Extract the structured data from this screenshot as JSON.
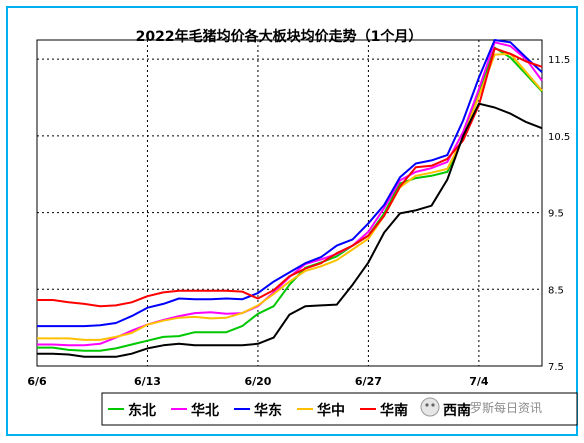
{
  "chart_data": {
    "type": "line",
    "title": "2022年毛猪均价各大板块均价走势（1个月）",
    "xlabel": "",
    "ylabel": "",
    "x_tick_labels": [
      "6/6",
      "6/13",
      "6/20",
      "6/27",
      "7/4"
    ],
    "x_tick_index": [
      0,
      7,
      14,
      21,
      28
    ],
    "ylim": [
      7.5,
      11.75
    ],
    "y_ticks": [
      7.5,
      8.5,
      9.5,
      10.5,
      11.5
    ],
    "y_tick_labels": [
      "7.5",
      "8.5",
      "9.5",
      "10.5",
      "11.5"
    ],
    "y_axis_side": "right",
    "grid": true,
    "legend_position": "bottom",
    "colors": {
      "background": "#ffffff",
      "frame": "#00b0f0",
      "grid": "#000000"
    },
    "series": [
      {
        "name": "东北",
        "color": "#00c800",
        "values": [
          7.74,
          7.74,
          7.71,
          7.7,
          7.7,
          7.73,
          7.78,
          7.83,
          7.88,
          7.89,
          7.94,
          7.94,
          7.94,
          8.02,
          8.18,
          8.28,
          8.56,
          8.78,
          8.85,
          8.93,
          9.07,
          9.2,
          9.49,
          9.88,
          9.95,
          9.98,
          10.03,
          10.48,
          11.06,
          11.65,
          11.52,
          11.3,
          11.08
        ]
      },
      {
        "name": "华北",
        "color": "#ff00ff",
        "values": [
          7.78,
          7.78,
          7.77,
          7.77,
          7.79,
          7.87,
          7.96,
          8.04,
          8.1,
          8.15,
          8.19,
          8.2,
          8.18,
          8.19,
          8.28,
          8.46,
          8.66,
          8.83,
          8.89,
          8.96,
          9.07,
          9.25,
          9.56,
          9.92,
          10.03,
          10.08,
          10.16,
          10.55,
          11.11,
          11.72,
          11.67,
          11.5,
          11.22
        ]
      },
      {
        "name": "华东",
        "color": "#0000ff",
        "values": [
          8.02,
          8.02,
          8.02,
          8.02,
          8.03,
          8.06,
          8.15,
          8.26,
          8.31,
          8.38,
          8.37,
          8.37,
          8.38,
          8.37,
          8.45,
          8.6,
          8.72,
          8.84,
          8.92,
          9.07,
          9.15,
          9.36,
          9.6,
          9.96,
          10.14,
          10.18,
          10.25,
          10.7,
          11.26,
          11.75,
          11.72,
          11.52,
          11.33
        ]
      },
      {
        "name": "华中",
        "color": "#ffc000",
        "values": [
          7.86,
          7.86,
          7.86,
          7.84,
          7.84,
          7.88,
          7.93,
          8.04,
          8.09,
          8.13,
          8.14,
          8.12,
          8.13,
          8.19,
          8.29,
          8.44,
          8.6,
          8.74,
          8.8,
          8.88,
          9.02,
          9.16,
          9.46,
          9.83,
          9.98,
          10.02,
          10.07,
          10.48,
          11.02,
          11.56,
          11.57,
          11.33,
          11.09
        ]
      },
      {
        "name": "华南",
        "color": "#ff0000",
        "values": [
          8.36,
          8.36,
          8.33,
          8.31,
          8.28,
          8.29,
          8.33,
          8.41,
          8.46,
          8.48,
          8.48,
          8.48,
          8.48,
          8.47,
          8.38,
          8.49,
          8.67,
          8.77,
          8.84,
          8.97,
          9.07,
          9.2,
          9.46,
          9.84,
          10.09,
          10.11,
          10.2,
          10.44,
          10.9,
          11.64,
          11.57,
          11.47,
          11.4
        ]
      },
      {
        "name": "西南",
        "color": "#000000",
        "values": [
          7.66,
          7.66,
          7.65,
          7.62,
          7.62,
          7.62,
          7.66,
          7.73,
          7.77,
          7.79,
          7.77,
          7.77,
          7.77,
          7.77,
          7.79,
          7.87,
          8.17,
          8.28,
          8.29,
          8.3,
          8.56,
          8.85,
          9.24,
          9.49,
          9.53,
          9.59,
          9.93,
          10.5,
          10.92,
          10.87,
          10.79,
          10.68,
          10.6
        ]
      }
    ]
  },
  "watermark": {
    "text": "罗斯每日资讯"
  }
}
